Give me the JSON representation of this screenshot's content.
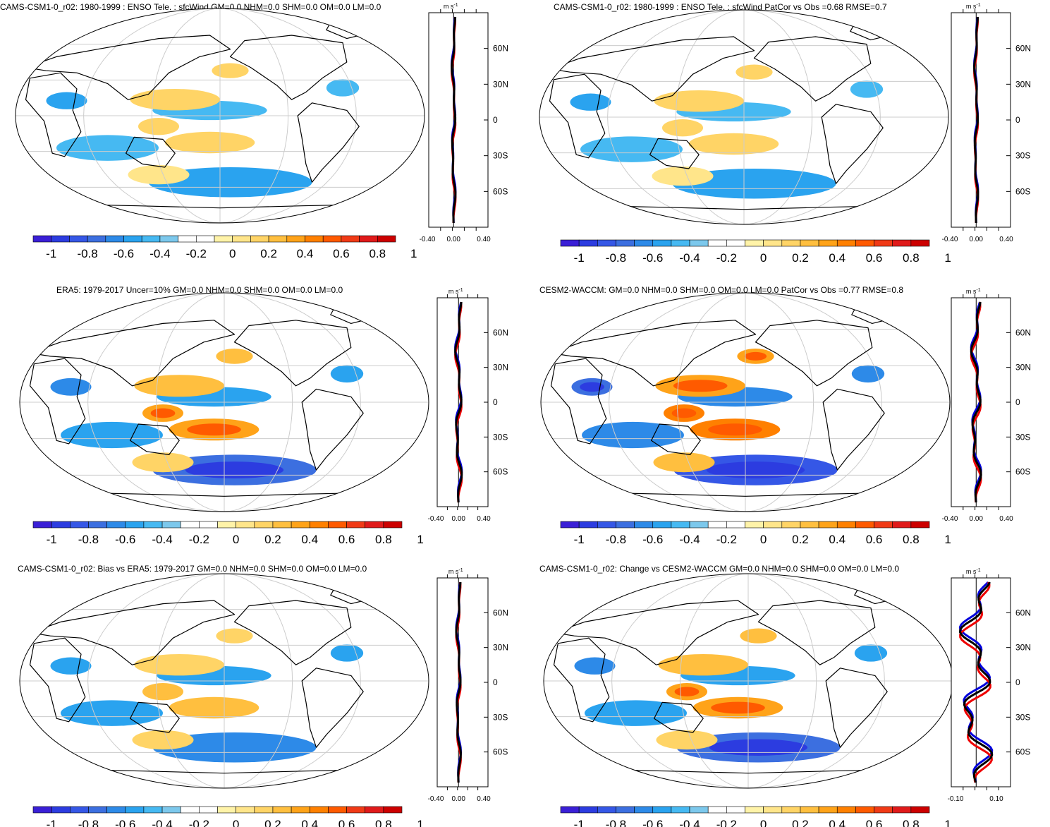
{
  "colorbar": {
    "colors": [
      "#3a1fd6",
      "#2c3ce0",
      "#3557e6",
      "#3c6fe0",
      "#2d8ae8",
      "#2aa3ef",
      "#46b9f2",
      "#7cc8ec",
      "#ffffff",
      "#ffffff",
      "#fff3a8",
      "#ffe58a",
      "#ffd466",
      "#ffbf3f",
      "#ffa319",
      "#ff8000",
      "#ff5a00",
      "#f03a16",
      "#e01a1a",
      "#cc0000"
    ],
    "labels": [
      "-1",
      "-0.8",
      "-0.6",
      "-0.4",
      "-0.2",
      "0",
      "0.2",
      "0.4",
      "0.6",
      "0.8",
      "1"
    ]
  },
  "zonal": {
    "units_label": "m s",
    "units_exp": "-1",
    "lat_labels": [
      "60N",
      "30N",
      "0",
      "30S",
      "60S"
    ]
  },
  "panels": [
    {
      "id": "p1",
      "title": "CAMS-CSM1-0_r02: 1980-1999 : ENSO Tele. : sfcWind GM=0.0 NHM=0.0 SHM=0.0 OM=0.0 LM=0.0",
      "x_ticks": [
        "-0.40",
        "0.00",
        "0.40"
      ],
      "amp": 0.5
    },
    {
      "id": "p2",
      "title": "CAMS-CSM1-0_r02: 1980-1999 : ENSO Tele. : sfcWind PatCor vs Obs =0.68 RMSE=0.7",
      "x_ticks": [
        "-0.40",
        "0.00",
        "0.40"
      ],
      "amp": 0.5
    },
    {
      "id": "p3",
      "title": "ERA5: 1979-2017 Uncer=10% GM=0.0 NHM=0.0 SHM=0.0 OM=0.0 LM=0.0",
      "x_ticks": [
        "-0.40",
        "0.00",
        "0.40"
      ],
      "amp": 1.0
    },
    {
      "id": "p4",
      "title": "CESM2-WACCM: GM=0.0 NHM=0.0 SHM=0.0 OM=0.0 LM=0.0 PatCor vs Obs =0.77 RMSE=0.8",
      "x_ticks": [
        "-0.40",
        "0.00",
        "0.40"
      ],
      "amp": 1.3
    },
    {
      "id": "p5",
      "title": "CAMS-CSM1-0_r02: Bias vs ERA5: 1979-2017 GM=0.0 NHM=0.0 SHM=0.0 OM=0.0 LM=0.0",
      "x_ticks": [
        "-0.40",
        "0.00",
        "0.40"
      ],
      "amp": 0.7
    },
    {
      "id": "p6",
      "title": "CAMS-CSM1-0_r02: Change vs CESM2-WACCM GM=0.0 NHM=0.0 SHM=0.0 OM=0.0 LM=0.0",
      "x_ticks": [
        "-0.10",
        "0.10"
      ],
      "amp": 1.0
    }
  ]
}
